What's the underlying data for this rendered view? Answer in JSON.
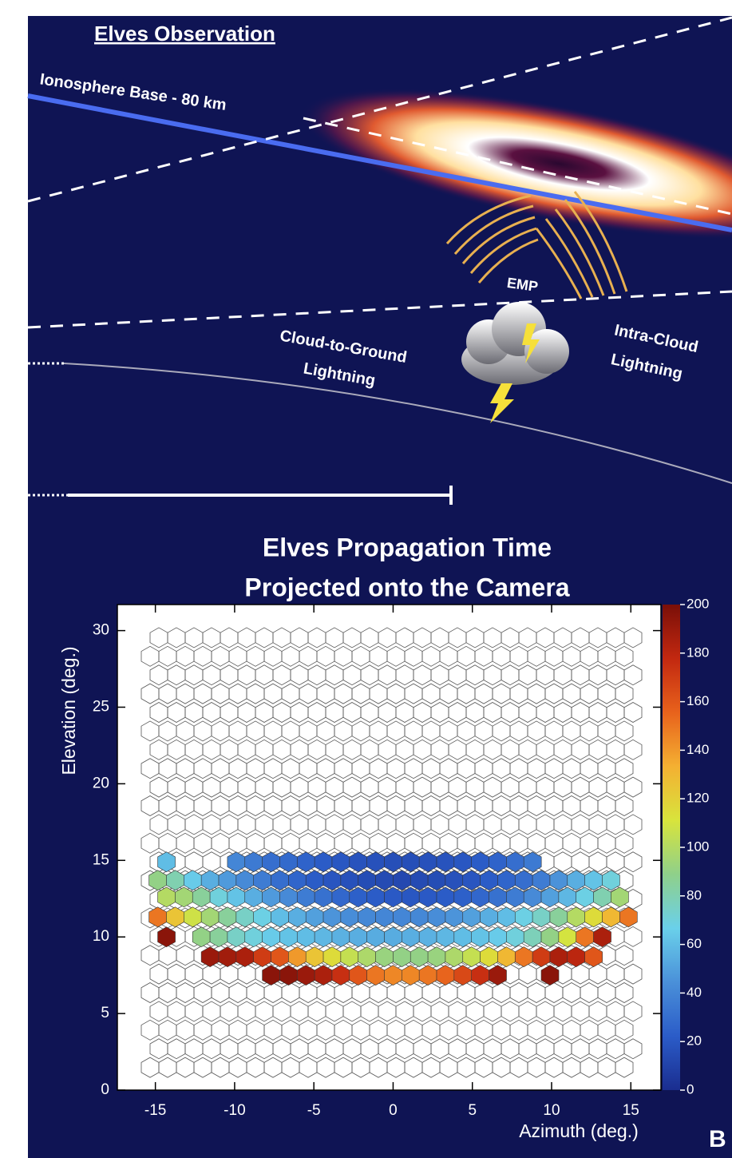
{
  "diagram": {
    "heading": "Elves Observation",
    "ionosphere_label": "Ionosphere Base - 80 km",
    "emp_label": "EMP",
    "cg_label": [
      "Cloud-to-Ground",
      "Lightning"
    ],
    "ic_label": [
      "Intra-Cloud",
      "Lightning"
    ],
    "panel_label": "B"
  },
  "chart_data": {
    "type": "hexmap",
    "title": [
      "Elves Propagation Time",
      "Projected onto the Camera"
    ],
    "x_label": "Azimuth (deg.)",
    "y_label": "Elevation (deg.)",
    "xlim": [
      -17.4,
      16.9
    ],
    "ylim": [
      0,
      31.7
    ],
    "xticks": [
      -15,
      -10,
      -5,
      0,
      5,
      10,
      15
    ],
    "yticks": [
      0,
      5,
      10,
      15,
      20,
      25,
      30
    ],
    "clim": [
      0,
      200
    ],
    "cticks": [
      0,
      20,
      40,
      60,
      80,
      100,
      120,
      140,
      160,
      180,
      200
    ],
    "colormap": [
      "#1a2d8f",
      "#2b5cc8",
      "#4a90d9",
      "#6ad0ea",
      "#8fd08a",
      "#d8e43c",
      "#f4b032",
      "#e8621c",
      "#c22810",
      "#7a0f08"
    ],
    "rows": [
      {
        "y": 14.9,
        "x": [
          -14.3,
          -9.9,
          -8.8,
          -7.7,
          -6.6,
          -5.5,
          -4.4,
          -3.3,
          -2.2,
          -1.1,
          0,
          1.1,
          2.2,
          3.3,
          4.4,
          5.5,
          6.6,
          7.7,
          8.8
        ],
        "values": [
          60,
          40,
          35,
          30,
          28,
          25,
          22,
          20,
          18,
          17,
          16,
          16,
          17,
          18,
          20,
          22,
          25,
          30,
          35
        ]
      },
      {
        "y": 13.7,
        "x": [
          -14.85,
          -13.75,
          -12.65,
          -11.55,
          -10.45,
          -9.35,
          -8.25,
          -7.15,
          -6.05,
          -4.95,
          -3.85,
          -2.75,
          -1.65,
          -0.55,
          0.55,
          1.65,
          2.75,
          3.85,
          4.95,
          6.05,
          7.15,
          8.25,
          9.35,
          10.45,
          11.55,
          12.65,
          13.75
        ],
        "values": [
          90,
          80,
          65,
          55,
          48,
          42,
          36,
          30,
          26,
          22,
          19,
          17,
          15,
          14,
          13,
          14,
          15,
          17,
          19,
          22,
          26,
          30,
          36,
          45,
          55,
          62,
          70
        ]
      },
      {
        "y": 12.6,
        "x": [
          -14.3,
          -13.2,
          -12.1,
          -11,
          -9.9,
          -8.8,
          -7.7,
          -6.6,
          -5.5,
          -4.4,
          -3.3,
          -2.2,
          -1.1,
          0,
          1.1,
          2.2,
          3.3,
          4.4,
          5.5,
          6.6,
          7.7,
          8.8,
          9.9,
          11,
          12.1,
          13.2,
          14.3
        ],
        "values": [
          100,
          95,
          85,
          70,
          62,
          55,
          48,
          42,
          36,
          31,
          27,
          24,
          22,
          21,
          20,
          21,
          22,
          24,
          27,
          31,
          36,
          42,
          50,
          58,
          68,
          80,
          95
        ]
      },
      {
        "y": 11.3,
        "x": [
          -14.85,
          -13.75,
          -12.65,
          -11.55,
          -10.45,
          -9.35,
          -8.25,
          -7.15,
          -6.05,
          -4.95,
          -3.85,
          -2.75,
          -1.65,
          -0.55,
          0.55,
          1.65,
          2.75,
          3.85,
          4.95,
          6.05,
          7.15,
          8.25,
          9.35,
          10.45,
          11.55,
          12.65,
          13.75,
          14.85
        ],
        "values": [
          150,
          125,
          108,
          95,
          85,
          75,
          68,
          60,
          55,
          50,
          46,
          43,
          41,
          40,
          40,
          41,
          43,
          46,
          50,
          55,
          60,
          68,
          75,
          85,
          100,
          115,
          130,
          150
        ]
      },
      {
        "y": 10.0,
        "x": [
          -14.3,
          -12.1,
          -11,
          -9.9,
          -8.8,
          -7.7,
          -6.6,
          -5.5,
          -4.4,
          -3.3,
          -2.2,
          -1.1,
          0,
          1.1,
          2.2,
          3.3,
          4.4,
          5.5,
          6.6,
          7.7,
          8.8,
          9.9,
          11,
          12.1,
          13.2
        ],
        "values": [
          195,
          90,
          85,
          75,
          70,
          65,
          62,
          60,
          58,
          56,
          55,
          54,
          54,
          55,
          56,
          58,
          60,
          62,
          65,
          70,
          78,
          90,
          110,
          150,
          185
        ]
      },
      {
        "y": 8.7,
        "x": [
          -11.55,
          -10.45,
          -9.35,
          -8.25,
          -7.15,
          -6.05,
          -4.95,
          -3.85,
          -2.75,
          -1.65,
          -0.55,
          0.55,
          1.65,
          2.75,
          3.85,
          4.95,
          6.05,
          7.15,
          8.25,
          9.35,
          10.45,
          11.55,
          12.65
        ],
        "values": [
          190,
          188,
          185,
          170,
          160,
          140,
          125,
          115,
          105,
          98,
          92,
          90,
          90,
          92,
          98,
          105,
          115,
          130,
          150,
          170,
          185,
          180,
          160
        ]
      },
      {
        "y": 7.5,
        "x": [
          -7.7,
          -6.6,
          -5.5,
          -4.4,
          -3.3,
          -2.2,
          -1.1,
          0,
          1.1,
          2.2,
          3.3,
          4.4,
          5.5,
          6.6,
          9.9
        ],
        "values": [
          195,
          195,
          190,
          185,
          175,
          160,
          150,
          145,
          145,
          150,
          155,
          165,
          175,
          190,
          195
        ]
      }
    ]
  }
}
